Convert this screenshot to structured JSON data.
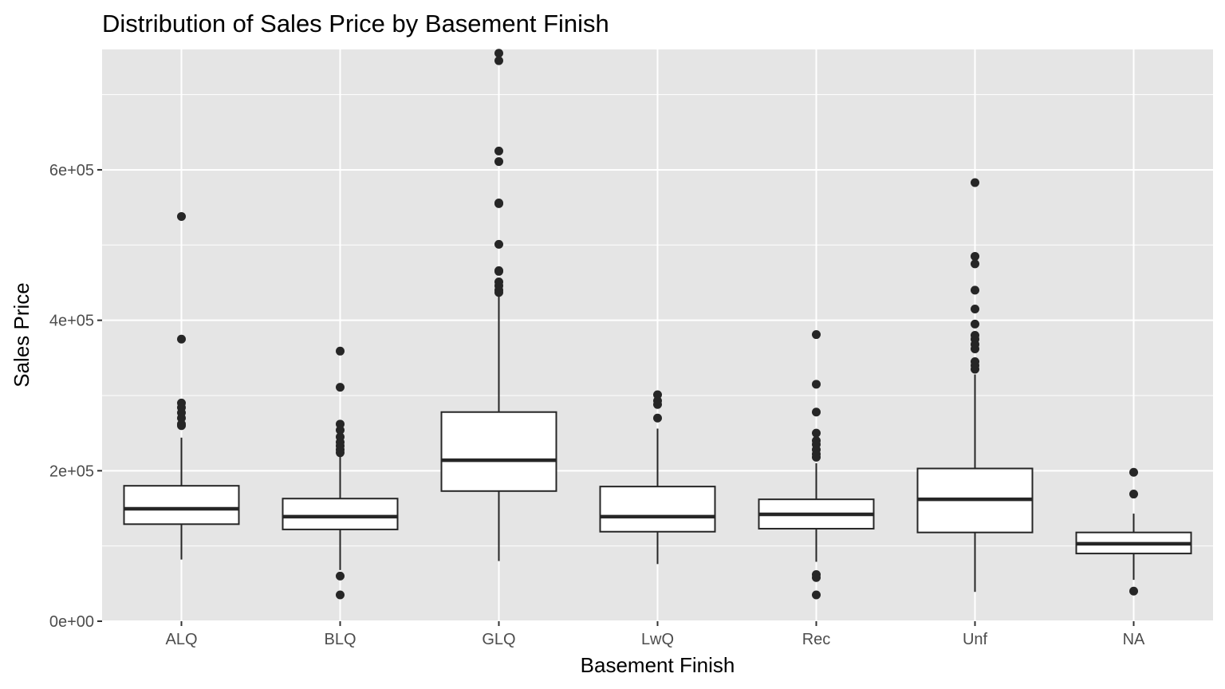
{
  "chart_data": {
    "type": "boxplot",
    "title": "Distribution of Sales Price by Basement Finish",
    "xlabel": "Basement Finish",
    "ylabel": "Sales Price",
    "ylim": [
      0,
      760000
    ],
    "yticks": [
      0,
      200000,
      400000,
      600000
    ],
    "ytick_labels": [
      "0e+00",
      "2e+05",
      "4e+05",
      "6e+05"
    ],
    "grid": true,
    "colors": {
      "panel": "#e5e5e5",
      "grid": "#ffffff",
      "box_fill": "#ffffff",
      "box_line": "#262626",
      "points": "#262626"
    },
    "categories": [
      "ALQ",
      "BLQ",
      "GLQ",
      "LwQ",
      "Rec",
      "Unf",
      "NA"
    ],
    "boxes": [
      {
        "category": "ALQ",
        "lower_whisker": 82000,
        "q1": 129000,
        "median": 149500,
        "q3": 180000,
        "upper_whisker": 244000,
        "outliers": [
          538000,
          375000,
          290000,
          284000,
          277000,
          270000,
          262000,
          260000
        ]
      },
      {
        "category": "BLQ",
        "lower_whisker": 68000,
        "q1": 122000,
        "median": 139000,
        "q3": 163000,
        "upper_whisker": 219000,
        "outliers": [
          359000,
          311000,
          262000,
          254000,
          245000,
          238000,
          233000,
          228000,
          224000,
          60000,
          35000
        ]
      },
      {
        "category": "GLQ",
        "lower_whisker": 80000,
        "q1": 173000,
        "median": 214000,
        "q3": 278000,
        "upper_whisker": 436000,
        "outliers": [
          755000,
          745000,
          625000,
          611000,
          556000,
          555000,
          501000,
          466000,
          465000,
          451000,
          446000,
          440000,
          437000
        ]
      },
      {
        "category": "LwQ",
        "lower_whisker": 76000,
        "q1": 119000,
        "median": 139000,
        "q3": 179000,
        "upper_whisker": 256000,
        "outliers": [
          301000,
          293000,
          288000,
          270000
        ]
      },
      {
        "category": "Rec",
        "lower_whisker": 79000,
        "q1": 123000,
        "median": 142000,
        "q3": 162000,
        "upper_whisker": 210000,
        "outliers": [
          381000,
          315000,
          278000,
          250000,
          240000,
          235000,
          228000,
          222000,
          218000,
          62000,
          58000,
          35000
        ]
      },
      {
        "category": "Unf",
        "lower_whisker": 39000,
        "q1": 118000,
        "median": 162000,
        "q3": 203000,
        "upper_whisker": 328000,
        "outliers": [
          583000,
          485000,
          475000,
          440000,
          415000,
          395000,
          380000,
          375000,
          368000,
          362000,
          345000,
          340000,
          335000
        ]
      },
      {
        "category": "NA",
        "lower_whisker": 55000,
        "q1": 90000,
        "median": 103000,
        "q3": 118000,
        "upper_whisker": 143000,
        "outliers": [
          198000,
          169000,
          40000
        ]
      }
    ]
  }
}
